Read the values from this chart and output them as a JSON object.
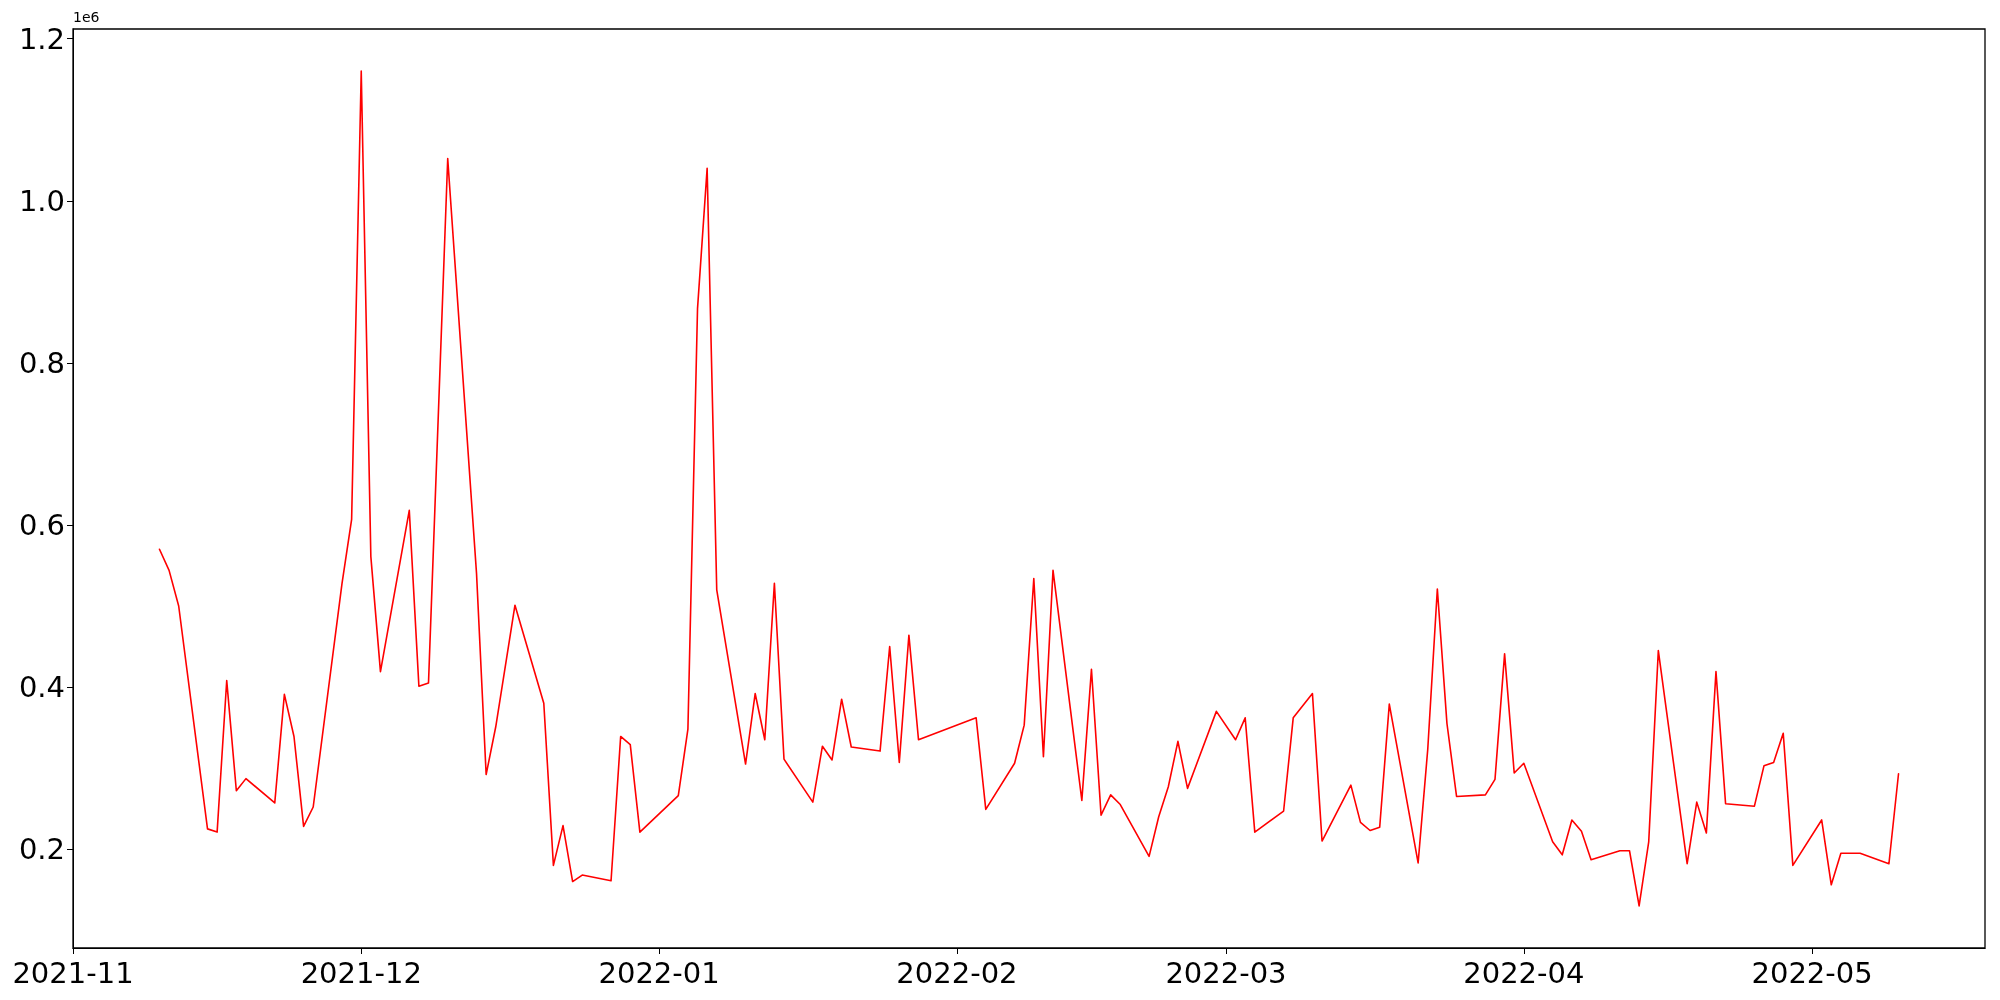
{
  "chart_data": {
    "type": "line",
    "annotations": [
      "1e6"
    ],
    "x": [
      "2021-11-10",
      "2021-11-11",
      "2021-11-12",
      "2021-11-15",
      "2021-11-16",
      "2021-11-17",
      "2021-11-18",
      "2021-11-19",
      "2021-11-22",
      "2021-11-23",
      "2021-11-24",
      "2021-11-25",
      "2021-11-26",
      "2021-11-29",
      "2021-11-30",
      "2021-12-01",
      "2021-12-02",
      "2021-12-03",
      "2021-12-06",
      "2021-12-07",
      "2021-12-08",
      "2021-12-10",
      "2021-12-13",
      "2021-12-14",
      "2021-12-15",
      "2021-12-17",
      "2021-12-20",
      "2021-12-21",
      "2021-12-22",
      "2021-12-23",
      "2021-12-24",
      "2021-12-27",
      "2021-12-28",
      "2021-12-29",
      "2021-12-30",
      "2022-01-03",
      "2022-01-04",
      "2022-01-05",
      "2022-01-06",
      "2022-01-07",
      "2022-01-10",
      "2022-01-11",
      "2022-01-12",
      "2022-01-13",
      "2022-01-14",
      "2022-01-17",
      "2022-01-18",
      "2022-01-19",
      "2022-01-20",
      "2022-01-21",
      "2022-01-24",
      "2022-01-25",
      "2022-01-26",
      "2022-01-27",
      "2022-01-28",
      "2022-02-03",
      "2022-02-04",
      "2022-02-07",
      "2022-02-08",
      "2022-02-09",
      "2022-02-10",
      "2022-02-11",
      "2022-02-14",
      "2022-02-15",
      "2022-02-16",
      "2022-02-17",
      "2022-02-18",
      "2022-02-21",
      "2022-02-22",
      "2022-02-23",
      "2022-02-24",
      "2022-02-25",
      "2022-02-28",
      "2022-03-02",
      "2022-03-03",
      "2022-03-04",
      "2022-03-07",
      "2022-03-08",
      "2022-03-10",
      "2022-03-11",
      "2022-03-14",
      "2022-03-15",
      "2022-03-16",
      "2022-03-17",
      "2022-03-18",
      "2022-03-21",
      "2022-03-22",
      "2022-03-23",
      "2022-03-24",
      "2022-03-25",
      "2022-03-28",
      "2022-03-29",
      "2022-03-30",
      "2022-03-31",
      "2022-04-01",
      "2022-04-04",
      "2022-04-05",
      "2022-04-06",
      "2022-04-07",
      "2022-04-08",
      "2022-04-11",
      "2022-04-12",
      "2022-04-13",
      "2022-04-14",
      "2022-04-15",
      "2022-04-18",
      "2022-04-19",
      "2022-04-20",
      "2022-04-21",
      "2022-04-22",
      "2022-04-25",
      "2022-04-26",
      "2022-04-27",
      "2022-04-28",
      "2022-04-29",
      "2022-05-02",
      "2022-05-03",
      "2022-05-04",
      "2022-05-06",
      "2022-05-09",
      "2022-05-10"
    ],
    "series": [
      {
        "color": "#ff0000",
        "values": [
          0.57,
          0.544,
          0.5,
          0.225,
          0.221,
          0.408,
          0.272,
          0.287,
          0.257,
          0.391,
          0.339,
          0.228,
          0.252,
          0.528,
          0.607,
          1.16,
          0.561,
          0.419,
          0.618,
          0.401,
          0.405,
          1.052,
          0.54,
          0.292,
          0.351,
          0.501,
          0.38,
          0.18,
          0.229,
          0.16,
          0.168,
          0.161,
          0.339,
          0.329,
          0.221,
          0.266,
          0.348,
          0.867,
          1.04,
          0.52,
          0.305,
          0.392,
          0.335,
          0.528,
          0.311,
          0.258,
          0.327,
          0.31,
          0.385,
          0.326,
          0.321,
          0.45,
          0.307,
          0.464,
          0.335,
          0.362,
          0.249,
          0.306,
          0.353,
          0.534,
          0.314,
          0.544,
          0.26,
          0.422,
          0.242,
          0.267,
          0.255,
          0.191,
          0.24,
          0.277,
          0.333,
          0.275,
          0.37,
          0.335,
          0.362,
          0.221,
          0.247,
          0.362,
          0.392,
          0.21,
          0.279,
          0.233,
          0.223,
          0.227,
          0.379,
          0.183,
          0.323,
          0.521,
          0.355,
          0.265,
          0.267,
          0.286,
          0.441,
          0.294,
          0.306,
          0.209,
          0.193,
          0.236,
          0.222,
          0.187,
          0.198,
          0.198,
          0.13,
          0.209,
          0.445,
          0.182,
          0.258,
          0.22,
          0.419,
          0.256,
          0.253,
          0.303,
          0.307,
          0.343,
          0.18,
          0.236,
          0.156,
          0.195,
          0.195,
          0.182,
          0.293
        ]
      }
    ],
    "xlim": [
      "2021-11-01",
      "2022-05-19"
    ],
    "xticks": [
      "2021-11",
      "2021-12",
      "2022-01",
      "2022-02",
      "2022-03",
      "2022-04",
      "2022-05"
    ],
    "ylim": [
      0.078,
      1.212
    ],
    "yticks": [
      0.2,
      0.4,
      0.6,
      0.8,
      {
        "value": 1.0,
        "label": "1.0"
      },
      1.2
    ],
    "grid": false
  }
}
